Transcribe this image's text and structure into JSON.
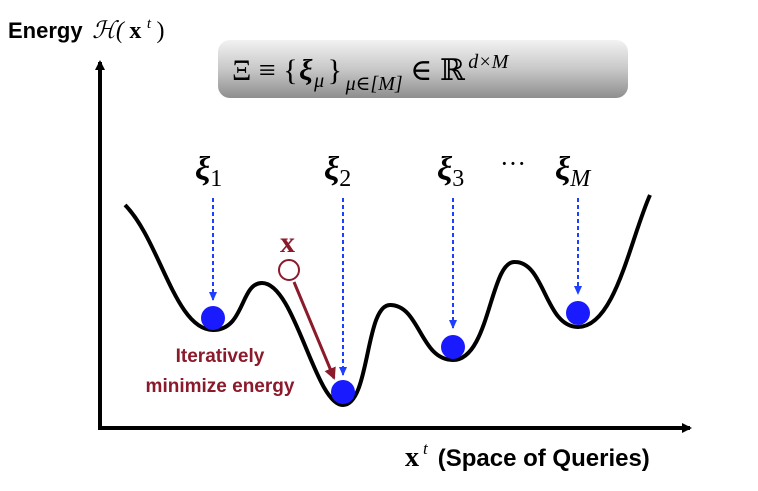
{
  "y_axis_label": [
    "Energy",
    "ℋ(",
    "x",
    "t",
    ")"
  ],
  "formula": [
    "Ξ ≡ {",
    "ξ",
    "μ",
    "}",
    "μ∈[M]",
    "∈ ℝ",
    "d×M"
  ],
  "patterns": [
    {
      "symbol": "ξ",
      "index": "1"
    },
    {
      "symbol": "ξ",
      "index": "2"
    },
    {
      "symbol": "ξ",
      "index": "3"
    },
    {
      "symbol": "ξ",
      "index": "M"
    }
  ],
  "ellipsis": "···",
  "query": "x",
  "annotation": [
    "Iteratively",
    "minimize energy"
  ],
  "x_axis_label": [
    "x",
    "t",
    "(Space of Queries)"
  ]
}
